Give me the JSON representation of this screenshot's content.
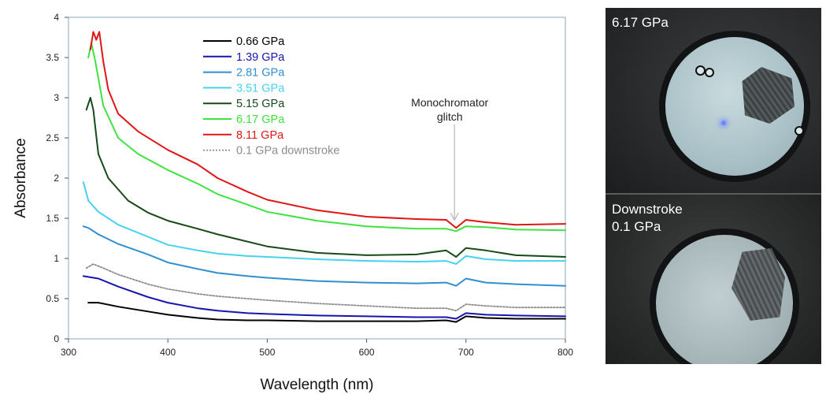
{
  "chart_data": {
    "type": "line",
    "xlabel": "Wavelength (nm)",
    "ylabel": "Absorbance",
    "xlim": [
      300,
      800
    ],
    "ylim": [
      0,
      4
    ],
    "xticks": [
      300,
      400,
      500,
      600,
      700,
      800
    ],
    "yticks": [
      0,
      0.5,
      1,
      1.5,
      2,
      2.5,
      3,
      3.5,
      4
    ],
    "grid": false,
    "legend_position": "top-center",
    "series": [
      {
        "name": "0.66 GPa",
        "color": "#000000",
        "dash": "solid",
        "points": [
          [
            320,
            0.45
          ],
          [
            330,
            0.45
          ],
          [
            350,
            0.4
          ],
          [
            380,
            0.34
          ],
          [
            400,
            0.3
          ],
          [
            430,
            0.26
          ],
          [
            450,
            0.24
          ],
          [
            480,
            0.23
          ],
          [
            500,
            0.23
          ],
          [
            550,
            0.22
          ],
          [
            600,
            0.22
          ],
          [
            650,
            0.22
          ],
          [
            680,
            0.23
          ],
          [
            690,
            0.21
          ],
          [
            700,
            0.28
          ],
          [
            720,
            0.26
          ],
          [
            750,
            0.25
          ],
          [
            800,
            0.25
          ]
        ]
      },
      {
        "name": "1.39 GPa",
        "color": "#1515b0",
        "dash": "solid",
        "points": [
          [
            315,
            0.78
          ],
          [
            330,
            0.75
          ],
          [
            350,
            0.65
          ],
          [
            380,
            0.52
          ],
          [
            400,
            0.45
          ],
          [
            430,
            0.38
          ],
          [
            450,
            0.35
          ],
          [
            480,
            0.32
          ],
          [
            500,
            0.31
          ],
          [
            550,
            0.29
          ],
          [
            600,
            0.28
          ],
          [
            650,
            0.27
          ],
          [
            680,
            0.27
          ],
          [
            690,
            0.25
          ],
          [
            700,
            0.32
          ],
          [
            720,
            0.3
          ],
          [
            750,
            0.29
          ],
          [
            800,
            0.28
          ]
        ]
      },
      {
        "name": "2.81 GPa",
        "color": "#2f8fd0",
        "dash": "solid",
        "points": [
          [
            315,
            1.4
          ],
          [
            320,
            1.38
          ],
          [
            330,
            1.3
          ],
          [
            350,
            1.18
          ],
          [
            380,
            1.05
          ],
          [
            400,
            0.95
          ],
          [
            430,
            0.87
          ],
          [
            450,
            0.82
          ],
          [
            480,
            0.78
          ],
          [
            500,
            0.76
          ],
          [
            550,
            0.72
          ],
          [
            600,
            0.7
          ],
          [
            650,
            0.69
          ],
          [
            680,
            0.7
          ],
          [
            690,
            0.66
          ],
          [
            700,
            0.75
          ],
          [
            720,
            0.7
          ],
          [
            750,
            0.68
          ],
          [
            800,
            0.66
          ]
        ]
      },
      {
        "name": "3.51 GPa",
        "color": "#45d2ee",
        "dash": "solid",
        "points": [
          [
            315,
            1.95
          ],
          [
            320,
            1.72
          ],
          [
            330,
            1.58
          ],
          [
            350,
            1.42
          ],
          [
            380,
            1.27
          ],
          [
            400,
            1.17
          ],
          [
            430,
            1.1
          ],
          [
            450,
            1.06
          ],
          [
            480,
            1.03
          ],
          [
            500,
            1.02
          ],
          [
            550,
            0.99
          ],
          [
            600,
            0.97
          ],
          [
            650,
            0.96
          ],
          [
            680,
            0.97
          ],
          [
            690,
            0.93
          ],
          [
            700,
            1.03
          ],
          [
            720,
            0.99
          ],
          [
            750,
            0.97
          ],
          [
            800,
            0.97
          ]
        ]
      },
      {
        "name": "5.15 GPa",
        "color": "#174a17",
        "dash": "solid",
        "points": [
          [
            318,
            2.85
          ],
          [
            322,
            3.0
          ],
          [
            325,
            2.85
          ],
          [
            330,
            2.3
          ],
          [
            340,
            2.0
          ],
          [
            360,
            1.72
          ],
          [
            380,
            1.57
          ],
          [
            400,
            1.47
          ],
          [
            430,
            1.37
          ],
          [
            450,
            1.3
          ],
          [
            470,
            1.24
          ],
          [
            500,
            1.15
          ],
          [
            550,
            1.07
          ],
          [
            600,
            1.04
          ],
          [
            650,
            1.05
          ],
          [
            680,
            1.1
          ],
          [
            690,
            1.02
          ],
          [
            700,
            1.13
          ],
          [
            720,
            1.1
          ],
          [
            750,
            1.04
          ],
          [
            800,
            1.02
          ]
        ]
      },
      {
        "name": "6.17 GPa",
        "color": "#3fe23f",
        "dash": "solid",
        "points": [
          [
            320,
            3.5
          ],
          [
            323,
            3.68
          ],
          [
            327,
            3.45
          ],
          [
            335,
            2.9
          ],
          [
            350,
            2.5
          ],
          [
            370,
            2.3
          ],
          [
            400,
            2.1
          ],
          [
            430,
            1.93
          ],
          [
            450,
            1.8
          ],
          [
            480,
            1.67
          ],
          [
            500,
            1.58
          ],
          [
            550,
            1.47
          ],
          [
            600,
            1.4
          ],
          [
            650,
            1.37
          ],
          [
            680,
            1.37
          ],
          [
            690,
            1.34
          ],
          [
            700,
            1.4
          ],
          [
            720,
            1.39
          ],
          [
            750,
            1.36
          ],
          [
            800,
            1.35
          ]
        ]
      },
      {
        "name": "8.11 GPa",
        "color": "#e01515",
        "dash": "solid",
        "points": [
          [
            322,
            3.6
          ],
          [
            325,
            3.82
          ],
          [
            328,
            3.72
          ],
          [
            331,
            3.82
          ],
          [
            335,
            3.45
          ],
          [
            340,
            3.1
          ],
          [
            350,
            2.8
          ],
          [
            370,
            2.58
          ],
          [
            400,
            2.35
          ],
          [
            430,
            2.17
          ],
          [
            450,
            2.0
          ],
          [
            480,
            1.83
          ],
          [
            500,
            1.73
          ],
          [
            550,
            1.6
          ],
          [
            600,
            1.52
          ],
          [
            650,
            1.49
          ],
          [
            680,
            1.48
          ],
          [
            690,
            1.38
          ],
          [
            700,
            1.48
          ],
          [
            720,
            1.45
          ],
          [
            750,
            1.42
          ],
          [
            800,
            1.43
          ]
        ]
      },
      {
        "name": "0.1 GPa downstroke",
        "color": "#8c8c8c",
        "dash": "dotted",
        "points": [
          [
            318,
            0.88
          ],
          [
            325,
            0.93
          ],
          [
            335,
            0.88
          ],
          [
            350,
            0.8
          ],
          [
            380,
            0.68
          ],
          [
            400,
            0.62
          ],
          [
            430,
            0.56
          ],
          [
            450,
            0.53
          ],
          [
            480,
            0.5
          ],
          [
            500,
            0.48
          ],
          [
            550,
            0.44
          ],
          [
            600,
            0.41
          ],
          [
            650,
            0.38
          ],
          [
            680,
            0.38
          ],
          [
            690,
            0.35
          ],
          [
            700,
            0.43
          ],
          [
            720,
            0.41
          ],
          [
            750,
            0.39
          ],
          [
            800,
            0.39
          ]
        ]
      }
    ],
    "annotations": [
      {
        "text": "Monochromator\nglitch",
        "x": 690,
        "y": 1.4
      }
    ]
  },
  "photos": [
    {
      "label": "6.17 GPa"
    },
    {
      "label": "Downstroke\n0.1 GPa"
    }
  ]
}
